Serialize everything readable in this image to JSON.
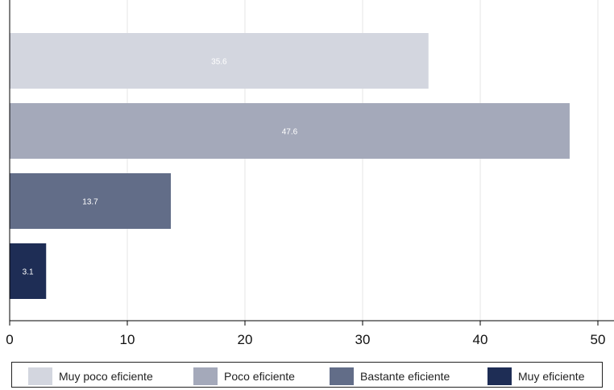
{
  "chart_data": {
    "type": "bar",
    "orientation": "horizontal",
    "title": "",
    "xlabel": "",
    "ylabel": "",
    "xlim": [
      0,
      52
    ],
    "xticks": [
      0,
      10,
      20,
      30,
      40,
      50
    ],
    "grid": true,
    "legend_position": "bottom",
    "categories": [
      "Muy poco eficiente",
      "Poco eficiente",
      "Bastante eficiente",
      "Muy eficiente"
    ],
    "values": [
      35.6,
      47.6,
      13.7,
      3.1
    ],
    "value_labels": [
      "35.6",
      "47.6",
      "13.7",
      "3.1"
    ],
    "colors": [
      "#d3d6df",
      "#a4a9ba",
      "#626d88",
      "#1e2d55"
    ]
  }
}
